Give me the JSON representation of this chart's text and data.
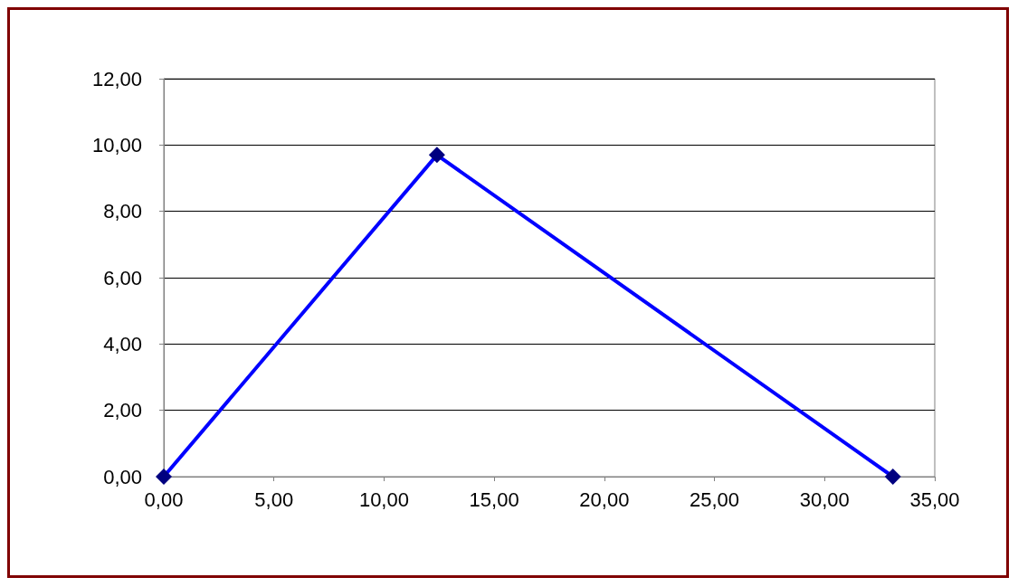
{
  "chart_data": {
    "type": "line",
    "x": [
      0,
      12.4,
      33.1
    ],
    "series": [
      {
        "color": "#0000ff",
        "colors": [
          "#000080",
          "#000080",
          "#000080"
        ],
        "values": [
          0,
          9.7,
          0
        ]
      }
    ],
    "xlim": [
      0,
      35
    ],
    "xticks": [
      {
        "value": 0,
        "label": "0,00"
      },
      {
        "value": 5,
        "label": "5,00"
      },
      {
        "value": 10,
        "label": "10,00"
      },
      {
        "value": 15,
        "label": "15,00"
      },
      {
        "value": 20,
        "label": "20,00"
      },
      {
        "value": 25,
        "label": "25,00"
      },
      {
        "value": 30,
        "label": "30,00"
      },
      {
        "value": 35,
        "label": "35,00"
      }
    ],
    "ylim": [
      0,
      12
    ],
    "yticks": [
      {
        "value": 0,
        "label": "0,00"
      },
      {
        "value": 2,
        "label": "2,00"
      },
      {
        "value": 4,
        "label": "4,00"
      },
      {
        "value": 6,
        "label": "6,00"
      },
      {
        "value": 8,
        "label": "8,00"
      },
      {
        "value": 10,
        "label": "10,00"
      },
      {
        "value": 12,
        "label": "12,00"
      }
    ],
    "grid": "y",
    "marker": "diamond",
    "line_style": "solid"
  }
}
